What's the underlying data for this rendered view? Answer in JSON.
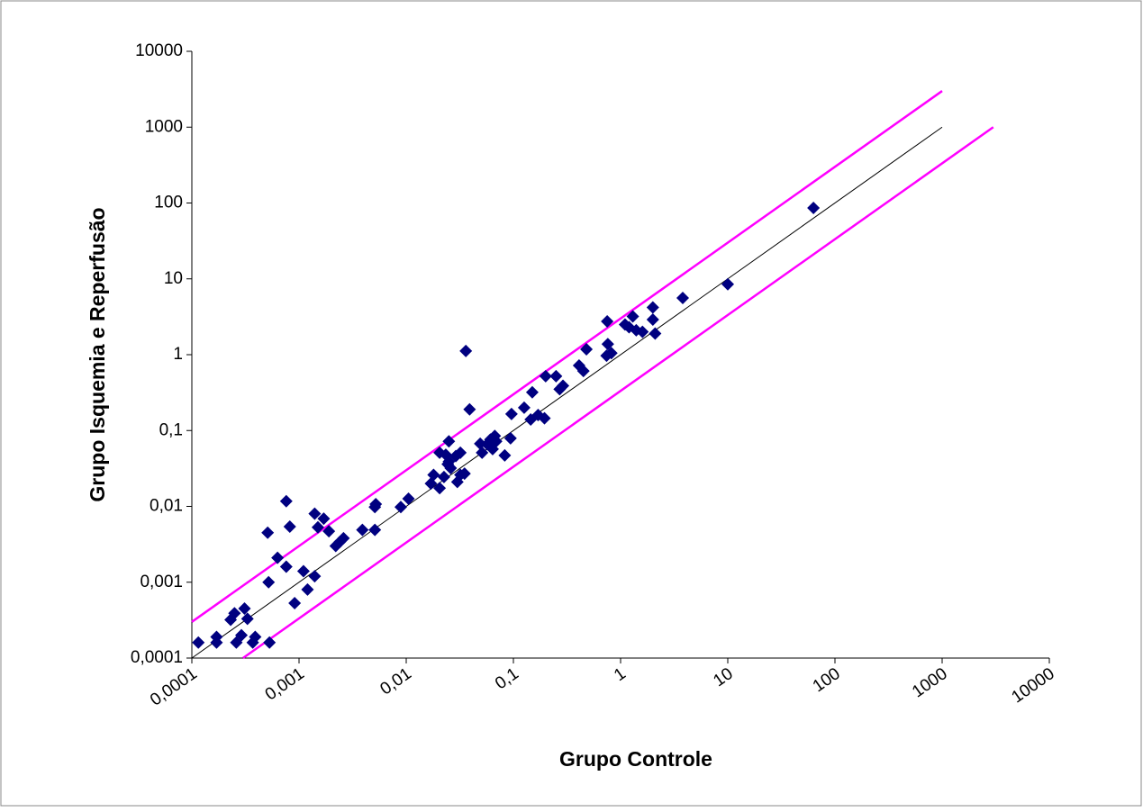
{
  "chart_data": {
    "type": "scatter",
    "x_label": "Grupo Controle",
    "y_label": "Grupo Isquemia e Reperfusão",
    "xscale": "log",
    "yscale": "log",
    "xlim": [
      0.0001,
      10000
    ],
    "ylim": [
      0.0001,
      10000
    ],
    "xticks": [
      {
        "value": 0.0001,
        "label": "0,0001"
      },
      {
        "value": 0.001,
        "label": "0,001"
      },
      {
        "value": 0.01,
        "label": "0,01"
      },
      {
        "value": 0.1,
        "label": "0,1"
      },
      1,
      10,
      100,
      1000,
      10000
    ],
    "yticks": [
      {
        "value": 0.0001,
        "label": "0,0001"
      },
      {
        "value": 0.001,
        "label": "0,001"
      },
      {
        "value": 0.01,
        "label": "0,01"
      },
      {
        "value": 0.1,
        "label": "0,1"
      },
      1,
      10,
      100,
      1000,
      10000
    ],
    "series": [
      {
        "color": "#000080",
        "x": [
          0.000115,
          0.00017,
          0.00017,
          0.00023,
          0.00025,
          0.00026,
          0.00029,
          0.00031,
          0.00033,
          0.00037,
          0.00039,
          0.00051,
          0.00052,
          0.00053,
          0.00063,
          0.00076,
          0.00076,
          0.00082,
          0.00091,
          0.0011,
          0.0012,
          0.0014,
          0.0014,
          0.0015,
          0.0017,
          0.0019,
          0.0022,
          0.0024,
          0.0026,
          0.0039,
          0.0051,
          0.0051,
          0.0052,
          0.0089,
          0.0105,
          0.017,
          0.018,
          0.0205,
          0.0205,
          0.0225,
          0.0234,
          0.0244,
          0.025,
          0.025,
          0.026,
          0.029,
          0.03,
          0.032,
          0.032,
          0.035,
          0.036,
          0.039,
          0.049,
          0.051,
          0.057,
          0.061,
          0.064,
          0.067,
          0.069,
          0.083,
          0.094,
          0.096,
          0.126,
          0.145,
          0.15,
          0.17,
          0.195,
          0.2,
          0.25,
          0.27,
          0.29,
          0.41,
          0.45,
          0.48,
          0.74,
          0.75,
          0.76,
          0.82,
          1.1,
          1.2,
          1.3,
          1.4,
          1.6,
          2.0,
          2.0,
          2.1,
          3.8,
          10,
          63
        ],
        "values": [
          0.00016,
          0.00019,
          0.00016,
          0.00032,
          0.00039,
          0.00016,
          0.0002,
          0.00045,
          0.00033,
          0.00016,
          0.00019,
          0.0045,
          0.001,
          0.00016,
          0.0021,
          0.0117,
          0.0016,
          0.0054,
          0.00053,
          0.0014,
          0.0008,
          0.0012,
          0.008,
          0.0053,
          0.0069,
          0.0047,
          0.003,
          0.0034,
          0.0038,
          0.0049,
          0.0098,
          0.0049,
          0.0107,
          0.0098,
          0.0126,
          0.02,
          0.026,
          0.0174,
          0.051,
          0.0244,
          0.048,
          0.036,
          0.072,
          0.039,
          0.032,
          0.046,
          0.021,
          0.051,
          0.026,
          0.027,
          1.12,
          0.19,
          0.067,
          0.051,
          0.066,
          0.076,
          0.057,
          0.085,
          0.072,
          0.047,
          0.079,
          0.165,
          0.2,
          0.14,
          0.32,
          0.16,
          0.145,
          0.52,
          0.52,
          0.35,
          0.39,
          0.72,
          0.61,
          1.18,
          0.97,
          2.75,
          1.38,
          1.05,
          2.5,
          2.3,
          3.2,
          2.1,
          2.0,
          2.9,
          4.2,
          1.9,
          5.6,
          8.5,
          86
        ]
      }
    ],
    "lines": [
      {
        "color": "#000000",
        "x": [
          0.0001,
          1000
        ],
        "values": [
          0.0001,
          1000
        ]
      },
      {
        "color": "#ff00ff",
        "x": [
          0.0001,
          1000
        ],
        "values": [
          0.0003,
          3000
        ]
      },
      {
        "color": "#ff00ff",
        "x": [
          0.0003,
          3000
        ],
        "values": [
          0.0001,
          1000
        ]
      }
    ]
  }
}
